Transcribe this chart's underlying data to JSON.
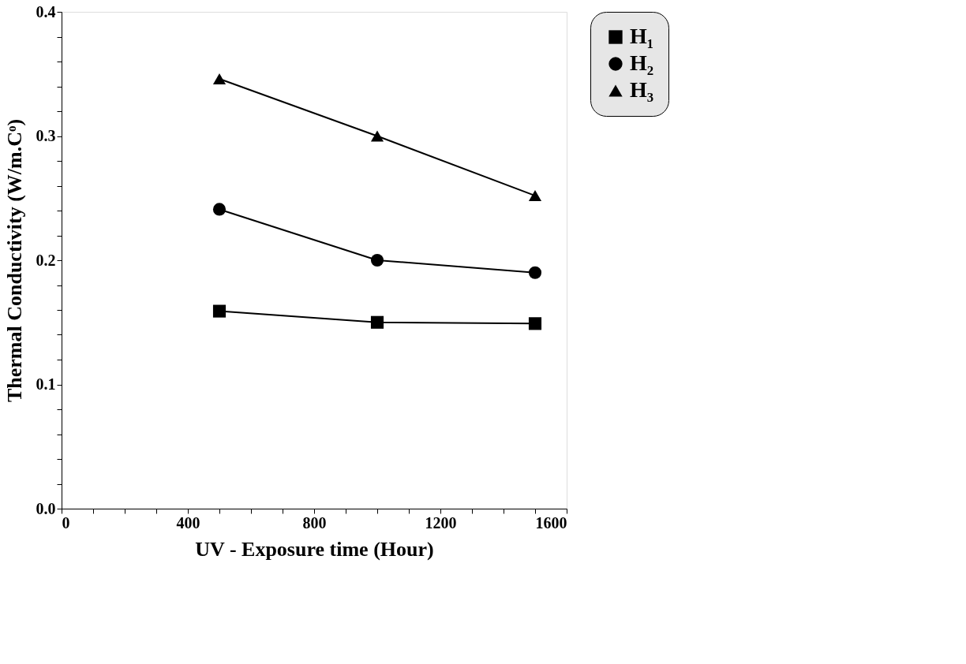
{
  "chart_data": {
    "type": "line",
    "xlabel": "UV - Exposure time (Hour)",
    "ylabel": "Thermal Conductivity (W/m.Cᵒ)",
    "x": [
      500,
      1000,
      1500
    ],
    "series": [
      {
        "name": "H₁",
        "color": "#000000",
        "marker": "square",
        "values": [
          0.159,
          0.15,
          0.149
        ]
      },
      {
        "name": "H₂",
        "color": "#000000",
        "marker": "circle",
        "values": [
          0.241,
          0.2,
          0.19
        ]
      },
      {
        "name": "H₃",
        "color": "#000000",
        "marker": "triangle",
        "values": [
          0.346,
          0.3,
          0.252
        ]
      }
    ],
    "xlim": [
      0,
      1600
    ],
    "xticks": [
      0,
      {
        "value": 100,
        "label": null
      },
      {
        "value": 200,
        "label": null
      },
      {
        "value": 300,
        "label": null
      },
      400,
      {
        "value": 500,
        "label": null
      },
      {
        "value": 600,
        "label": null
      },
      {
        "value": 700,
        "label": null
      },
      800,
      {
        "value": 900,
        "label": null
      },
      {
        "value": 1000,
        "label": null
      },
      {
        "value": 1100,
        "label": null
      },
      1200,
      {
        "value": 1300,
        "label": null
      },
      {
        "value": 1400,
        "label": null
      },
      {
        "value": 1500,
        "label": null
      },
      1600
    ],
    "ylim": [
      0,
      0.4
    ],
    "yticks": [
      {
        "value": 0,
        "label": "0.0"
      },
      {
        "value": 0.02,
        "label": null
      },
      {
        "value": 0.04,
        "label": null
      },
      {
        "value": 0.06,
        "label": null
      },
      {
        "value": 0.08,
        "label": null
      },
      0.1,
      {
        "value": 0.12,
        "label": null
      },
      {
        "value": 0.14,
        "label": null
      },
      {
        "value": 0.16,
        "label": null
      },
      {
        "value": 0.18,
        "label": null
      },
      0.2,
      {
        "value": 0.22,
        "label": null
      },
      {
        "value": 0.24,
        "label": null
      },
      {
        "value": 0.26,
        "label": null
      },
      {
        "value": 0.28,
        "label": null
      },
      0.3,
      {
        "value": 0.32,
        "label": null
      },
      {
        "value": 0.34,
        "label": null
      },
      {
        "value": 0.36,
        "label": null
      },
      {
        "value": 0.38,
        "label": null
      },
      0.4
    ],
    "grid": false,
    "legend": "right",
    "line_style": "solid"
  }
}
